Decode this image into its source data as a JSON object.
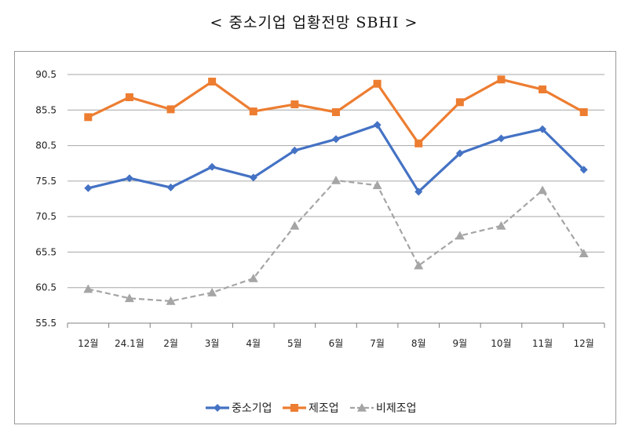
{
  "title": "< 중소기업 업황전망 SBHI >",
  "chart_data": {
    "type": "line",
    "title": "< 중소기업 업황전망 SBHI >",
    "categories": [
      "12월",
      "24.1월",
      "2월",
      "3월",
      "4월",
      "5월",
      "6월",
      "7월",
      "8월",
      "9월",
      "10월",
      "11월",
      "12월"
    ],
    "ylim": [
      55.5,
      90.5
    ],
    "yticks": [
      "90.5",
      "85.5",
      "80.5",
      "75.5",
      "70.5",
      "65.5",
      "60.5",
      "55.5"
    ],
    "grid": true,
    "legend_position": "bottom",
    "series": [
      {
        "name": "중소기업",
        "color": "#4472C4",
        "marker": "diamond",
        "dash": "solid",
        "values": [
          74.5,
          75.9,
          74.6,
          77.5,
          76.0,
          79.8,
          81.4,
          83.4,
          74.0,
          79.4,
          81.5,
          82.8,
          77.1
        ]
      },
      {
        "name": "제조업",
        "color": "#ED7D31",
        "marker": "square",
        "dash": "solid",
        "values": [
          84.5,
          87.3,
          85.6,
          89.5,
          85.3,
          86.3,
          85.2,
          89.2,
          80.8,
          86.6,
          89.8,
          88.4,
          85.2
        ]
      },
      {
        "name": "비제조업",
        "color": "#A5A5A5",
        "marker": "triangle",
        "dash": "dashed",
        "values": [
          60.3,
          59.0,
          58.6,
          59.8,
          61.8,
          69.2,
          75.6,
          74.9,
          63.6,
          67.8,
          69.2,
          74.2,
          65.3
        ]
      }
    ]
  }
}
